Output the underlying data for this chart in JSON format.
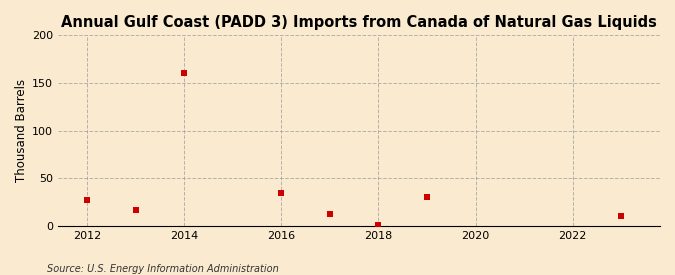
{
  "title": "Annual Gulf Coast (PADD 3) Imports from Canada of Natural Gas Liquids",
  "ylabel": "Thousand Barrels",
  "source": "Source: U.S. Energy Information Administration",
  "background_color": "#faebd0",
  "plot_background_color": "#faebd0",
  "grid_color": "#999999",
  "x_data": [
    2012,
    2013,
    2014,
    2016,
    2017,
    2018,
    2019,
    2023
  ],
  "y_data": [
    27,
    17,
    160,
    35,
    13,
    1,
    30,
    10
  ],
  "marker_color": "#cc0000",
  "marker": "s",
  "marker_size": 4,
  "xlim": [
    2011.4,
    2023.8
  ],
  "ylim": [
    0,
    200
  ],
  "yticks": [
    0,
    50,
    100,
    150,
    200
  ],
  "xticks": [
    2012,
    2014,
    2016,
    2018,
    2020,
    2022
  ],
  "title_fontsize": 10.5,
  "label_fontsize": 8.5,
  "tick_fontsize": 8,
  "source_fontsize": 7
}
